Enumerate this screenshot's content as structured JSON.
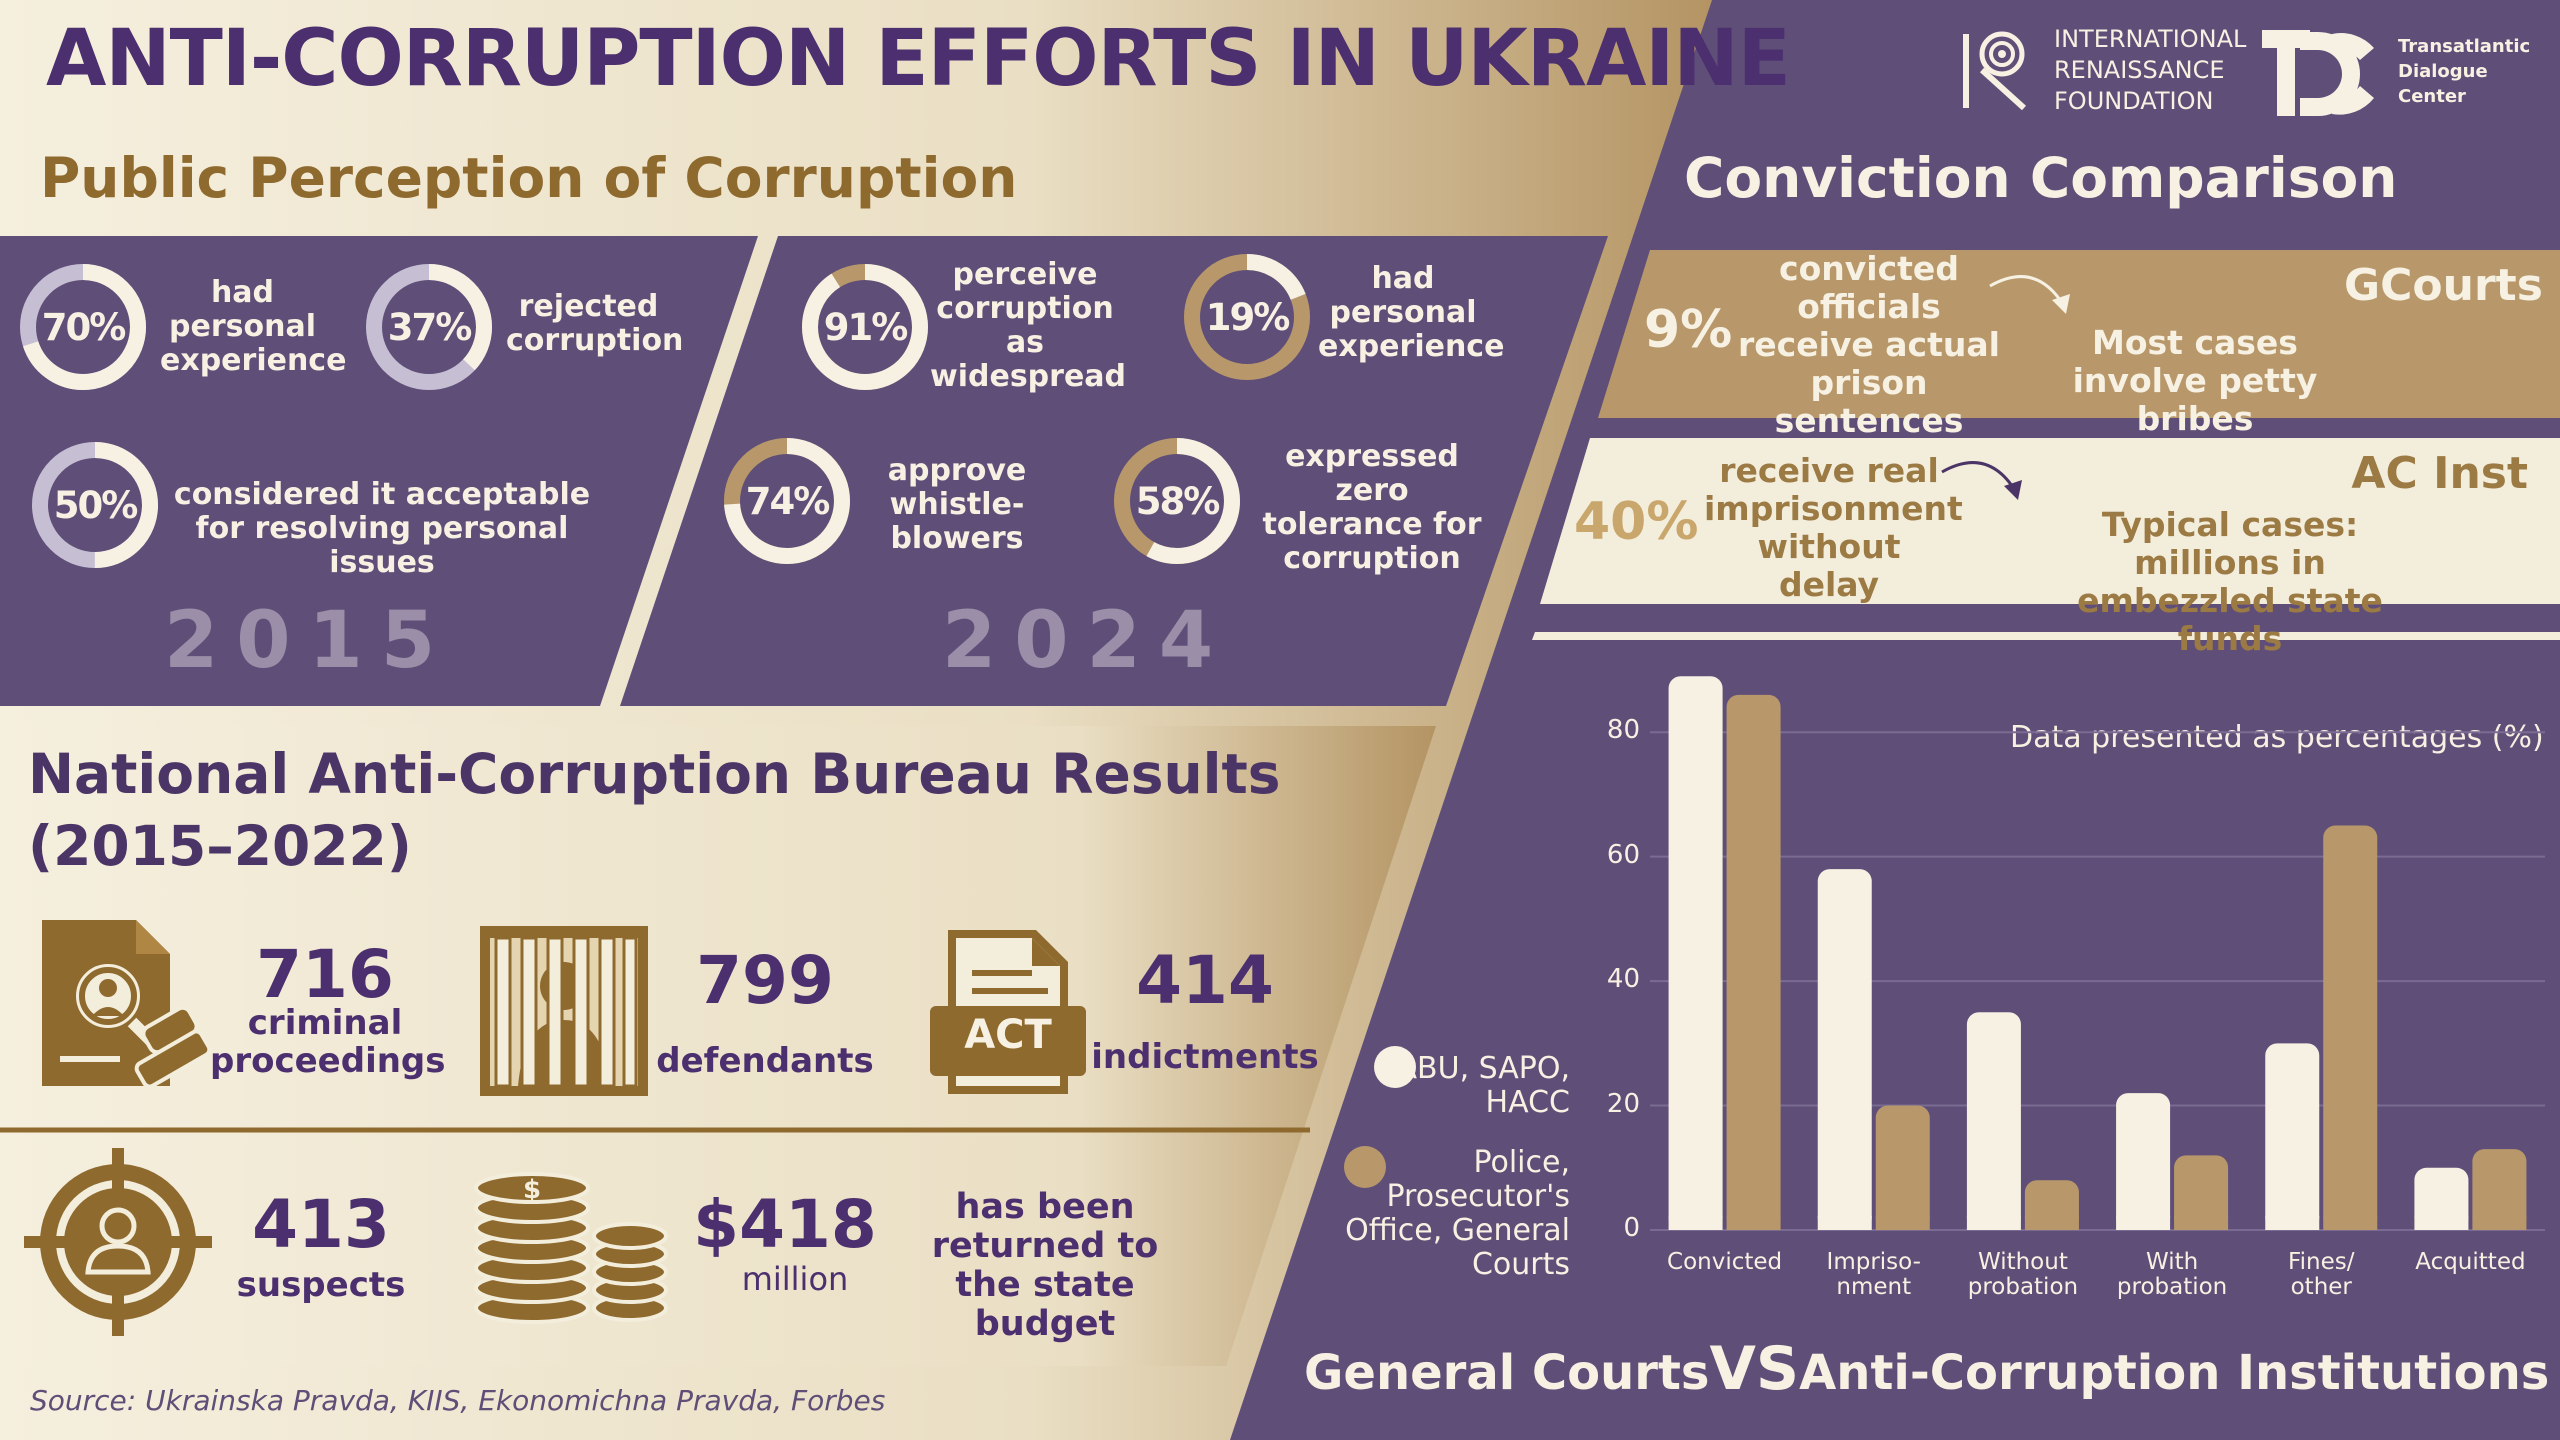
{
  "header": {
    "title": "ANTI-CORRUPTION EFFORTS IN UKRAINE",
    "org1": [
      "INTERNATIONAL",
      "RENAISSANCE",
      "FOUNDATION"
    ],
    "org2": [
      "Transatlantic",
      "Dialogue",
      "Center"
    ]
  },
  "perception": {
    "heading": "Public Perception of Corruption",
    "y2015": {
      "year": "2015",
      "stats": [
        {
          "pct": "70%",
          "value": 70,
          "label": "had personal experience"
        },
        {
          "pct": "37%",
          "value": 37,
          "label": "rejected corruption"
        },
        {
          "pct": "50%",
          "value": 50,
          "label": "considered it acceptable for resolving personal issues"
        }
      ]
    },
    "y2024": {
      "year": "2024",
      "stats": [
        {
          "pct": "91%",
          "value": 91,
          "label": "perceive corruption as widespread"
        },
        {
          "pct": "19%",
          "value": 19,
          "label": "had personal experience"
        },
        {
          "pct": "74%",
          "value": 74,
          "label": "approve whistle-blowers"
        },
        {
          "pct": "58%",
          "value": 58,
          "label": "expressed zero tolerance for corruption"
        }
      ]
    }
  },
  "nabu": {
    "heading_line1": "National Anti-Corruption Bureau Results",
    "heading_line2": "(2015–2022)",
    "act_label": "ACT",
    "items": [
      {
        "num": "716",
        "label": "criminal proceedings",
        "icon": "document-magnifier-stamp-icon"
      },
      {
        "num": "799",
        "label": "defendants",
        "icon": "prison-bars-icon"
      },
      {
        "num": "414",
        "label": "indictments",
        "icon": "act-document-icon"
      },
      {
        "num": "413",
        "label": "suspects",
        "icon": "target-person-icon"
      },
      {
        "num": "$418",
        "label": "million",
        "icon": "coin-stacks-icon"
      }
    ],
    "returned": "has been returned to the state budget"
  },
  "conviction": {
    "heading": "Conviction Comparison",
    "gcourts": {
      "tag": "GCourts",
      "pct": "9%",
      "text": "convicted officials receive actual prison sentences",
      "note": "Most cases involve petty bribes"
    },
    "acinst": {
      "tag": "AC Inst",
      "pct": "40%",
      "text": "receive real imprisonment without delay",
      "note": "Typical cases: millions in embezzled state funds"
    }
  },
  "chart_data": {
    "type": "bar",
    "annotation": "Data presented as percentages (%)",
    "categories": [
      "Convicted",
      "Impriso-\nnment",
      "Without\nprobation",
      "With\nprobation",
      "Fines/\nother",
      "Acquitted"
    ],
    "series": [
      {
        "name": "NABU, SAPO, HACC",
        "color": "#f6f1e2",
        "values": [
          89,
          58,
          35,
          22,
          30,
          10
        ]
      },
      {
        "name": "Police, Prosecutor's Office, General Courts",
        "color": "#b8986a",
        "values": [
          86,
          20,
          8,
          12,
          65,
          13
        ]
      }
    ],
    "ylim": [
      0,
      90
    ],
    "yticks": [
      0,
      20,
      40,
      60,
      80
    ],
    "grid": true,
    "legend_position": "left"
  },
  "footer": {
    "vs_left": "General Courts",
    "vs": "VS",
    "vs_right": "Anti-Corruption Institutions",
    "source": "Source: Ukrainska Pravda, KIIS, Ekonomichna Pravda, Forbes"
  },
  "colors": {
    "purple": "#5f4f78",
    "dark_purple": "#4b2f6e",
    "gold": "#b8986a",
    "cream": "#f6f1e2"
  }
}
